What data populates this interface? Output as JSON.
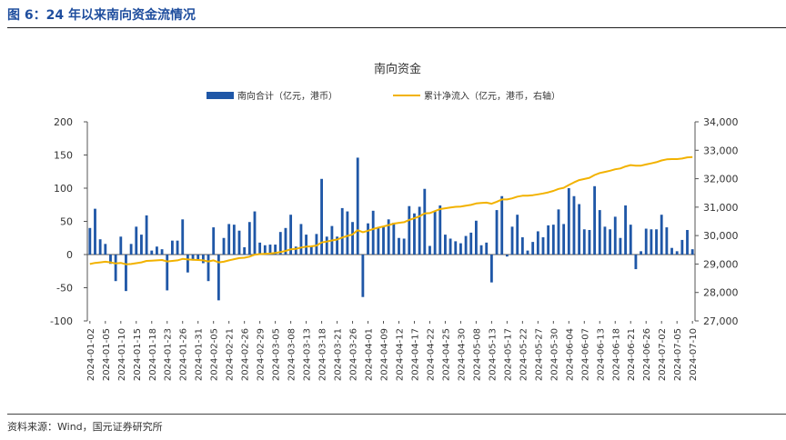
{
  "figure": {
    "title": "图 6：24 年以来南向资金流情况",
    "source": "资料来源：Wind，国元证券研究所"
  },
  "colors": {
    "bar": "#1f57a7",
    "line": "#f2b200",
    "axis": "#555555",
    "text": "#333333"
  },
  "chart_data": {
    "type": "bar",
    "title": "南向资金",
    "legend": {
      "placement": "top-center"
    },
    "series": [
      {
        "name": "南向合计（亿元，港币）",
        "type": "bar",
        "axis": "left",
        "values": [
          40,
          69,
          23,
          16,
          -14,
          -40,
          27,
          -55,
          16,
          42,
          30,
          59,
          6,
          12,
          8,
          -54,
          21,
          21,
          53,
          -27,
          -9,
          -9,
          -13,
          -40,
          41,
          -69,
          25,
          46,
          45,
          36,
          11,
          49,
          65,
          18,
          14,
          15,
          15,
          34,
          40,
          60,
          12,
          46,
          30,
          12,
          31,
          114,
          27,
          43,
          27,
          70,
          65,
          49,
          146,
          -64,
          47,
          66,
          40,
          43,
          53,
          48,
          25,
          24,
          73,
          62,
          72,
          99,
          13,
          66,
          74,
          30,
          24,
          20,
          17,
          28,
          33,
          51,
          14,
          18,
          -42,
          67,
          88,
          -3,
          42,
          60,
          26,
          6,
          19,
          35,
          26,
          44,
          45,
          68,
          46,
          100,
          88,
          76,
          38,
          37,
          103,
          67,
          42,
          38,
          57,
          25,
          74,
          45,
          -22,
          5,
          39,
          38,
          38,
          60,
          41,
          10,
          5,
          22,
          37,
          8
        ]
      },
      {
        "name": "累计净流入（亿元，港币，右轴）",
        "type": "line",
        "axis": "right",
        "values": [
          29000,
          29040,
          29060,
          29080,
          29060,
          29020,
          29040,
          28990,
          29000,
          29030,
          29060,
          29110,
          29120,
          29130,
          29140,
          29090,
          29110,
          29130,
          29180,
          29160,
          29150,
          29140,
          29130,
          29090,
          29130,
          29060,
          29080,
          29130,
          29170,
          29210,
          29220,
          29260,
          29330,
          29350,
          29360,
          29370,
          29390,
          29420,
          29460,
          29520,
          29530,
          29580,
          29610,
          29620,
          29650,
          29760,
          29790,
          29830,
          29860,
          29930,
          29990,
          30040,
          30190,
          30120,
          30170,
          30230,
          30280,
          30320,
          30370,
          30420,
          30450,
          30470,
          30550,
          30610,
          30680,
          30780,
          30790,
          30860,
          30930,
          30960,
          30990,
          31010,
          31020,
          31050,
          31080,
          31130,
          31150,
          31160,
          31120,
          31190,
          31270,
          31270,
          31310,
          31370,
          31400,
          31400,
          31420,
          31450,
          31480,
          31520,
          31570,
          31640,
          31680,
          31780,
          31870,
          31950,
          31990,
          32030,
          32130,
          32200,
          32240,
          32280,
          32330,
          32360,
          32430,
          32480,
          32460,
          32460,
          32500,
          32540,
          32580,
          32640,
          32680,
          32690,
          32690,
          32710,
          32750,
          32760
        ]
      }
    ],
    "x_tick_labels": [
      "2024-01-02",
      "2024-01-05",
      "2024-01-10",
      "2024-01-15",
      "2024-01-18",
      "2024-01-23",
      "2024-01-26",
      "2024-01-31",
      "2024-02-05",
      "2024-02-21",
      "2024-02-26",
      "2024-02-29",
      "2024-03-05",
      "2024-03-08",
      "2024-03-13",
      "2024-03-18",
      "2024-03-21",
      "2024-03-26",
      "2024-04-01",
      "2024-04-09",
      "2024-04-12",
      "2024-04-17",
      "2024-04-22",
      "2024-04-25",
      "2024-04-30",
      "2024-05-08",
      "2024-05-13",
      "2024-05-17",
      "2024-05-22",
      "2024-05-27",
      "2024-05-30",
      "2024-06-04",
      "2024-06-07",
      "2024-06-13",
      "2024-06-18",
      "2024-06-21",
      "2024-06-26",
      "2024-07-02",
      "2024-07-05",
      "2024-07-10"
    ],
    "ylim_left": [
      -100,
      200
    ],
    "yticks_left": [
      "-100",
      "-50",
      "0",
      "50",
      "100",
      "150",
      "200"
    ],
    "ylim_right": [
      27000,
      34000
    ],
    "yticks_right": [
      "27,000",
      "28,000",
      "29,000",
      "30,000",
      "31,000",
      "32,000",
      "33,000",
      "34,000"
    ],
    "grid": false
  }
}
